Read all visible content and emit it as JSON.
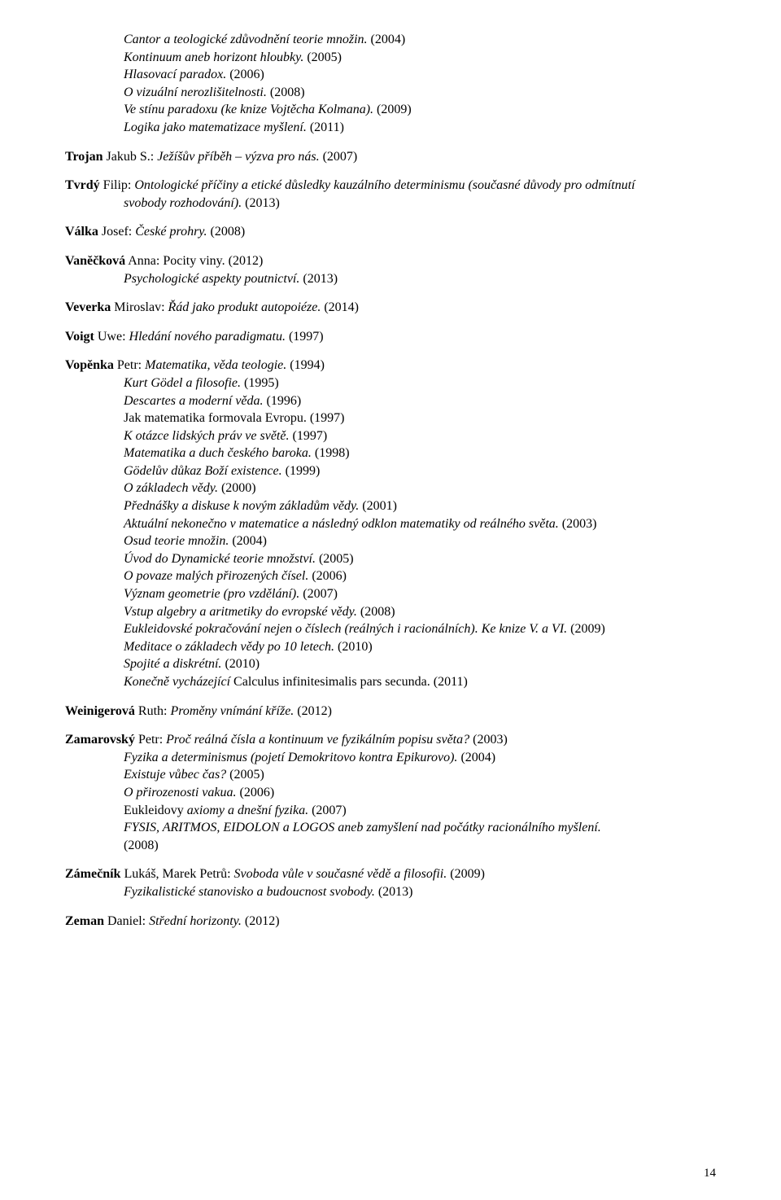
{
  "page_number": "14",
  "top_block": [
    {
      "t": "Cantor a teologické zdůvodnění teorie množin.",
      "y": " (2004)"
    },
    {
      "t": "Kontinuum aneb horizont hloubky.",
      "y": " (2005)"
    },
    {
      "t": "Hlasovací paradox.",
      "y": " (2006)"
    },
    {
      "t": "O vizuální nerozlišitelnosti.",
      "y": " (2008)"
    },
    {
      "t": "Ve stínu paradoxu (ke knize Vojtěcha Kolmana).",
      "y": " (2009)"
    },
    {
      "t": "Logika jako matematizace myšlení.",
      "y": " (2011)"
    }
  ],
  "trojan": {
    "a": "Trojan",
    "n": " Jakub S.: ",
    "t": "Ježíšův příběh – výzva pro nás.",
    "y": " (2007)"
  },
  "tvrdy": {
    "a": "Tvrdý",
    "n": " Filip: ",
    "t1": "Ontologické příčiny a etické důsledky kauzálního determinismu (současné důvody pro odmítnutí",
    "t2": "svobody rozhodování).",
    "y": " (2013)"
  },
  "valka": {
    "a": "Válka",
    "n": " Josef: ",
    "t": "České prohry.",
    "y": " (2008)"
  },
  "vaneckova": {
    "a": "Vaněčková",
    "n": " Anna: Pocity viny. (2012)",
    "sub": [
      {
        "t": "Psychologické aspekty poutnictví.",
        "y": " (2013)"
      }
    ]
  },
  "veverka": {
    "a": "Veverka",
    "n": " Miroslav: ",
    "t": "Řád jako produkt autopoiéze.",
    "y": " (2014)"
  },
  "voigt": {
    "a": "Voigt",
    "n": " Uwe: ",
    "t": "Hledání nového paradigmatu.",
    "y": " (1997)"
  },
  "vopenka": {
    "a": "Vopěnka",
    "n": " Petr: ",
    "t": "Matematika, věda teologie.",
    "y": " (1994)",
    "sub": [
      {
        "t": "Kurt Gödel a filosofie.",
        "y": " (1995)"
      },
      {
        "t": "Descartes a moderní věda.",
        "y": " (1996)"
      },
      {
        "plain": "Jak matematika formovala Evropu. (1997)"
      },
      {
        "t": "K otázce lidských práv ve světě.",
        "y": " (1997)"
      },
      {
        "t": "Matematika a duch českého baroka.",
        "y": " (1998)"
      },
      {
        "t": "Gödelův důkaz Boží existence.",
        "y": " (1999)"
      },
      {
        "t": "O základech vědy.",
        "y": " (2000)"
      },
      {
        "t": "Přednášky a diskuse k novým základům vědy.",
        "y": " (2001)"
      },
      {
        "t": "Aktuální nekonečno v matematice a následný odklon matematiky od reálného světa.",
        "y": " (2003)"
      },
      {
        "t": "Osud teorie množin.",
        "y": " (2004)"
      },
      {
        "t": "Úvod do Dynamické teorie množství.",
        "y": " (2005)"
      },
      {
        "t": "O povaze malých přirozených čísel.",
        "y": " (2006)"
      },
      {
        "t": "Význam geometrie (pro vzdělání).",
        "y": " (2007)"
      },
      {
        "t": "Vstup algebry a aritmetiky do evropské vědy.",
        "y": " (2008)"
      },
      {
        "t": "Eukleidovské pokračování nejen o číslech (reálných i racionálních). Ke knize V. a VI.",
        "y": " (2009)"
      },
      {
        "t": "Meditace o základech vědy po 10 letech.",
        "y": " (2010)"
      },
      {
        "t": "Spojité a diskrétní.",
        "y": " (2010)"
      },
      {
        "lead_i": "Konečně vycházející ",
        "plain_after": "Calculus infinitesimalis pars secunda. (2011)"
      }
    ]
  },
  "weinigerova": {
    "a": "Weinigerová",
    "n": " Ruth: ",
    "t": "Proměny vnímání kříže.",
    "y": " (2012)"
  },
  "zamarovsky": {
    "a": "Zamarovský",
    "n": " Petr: ",
    "t": "Proč reálná čísla a kontinuum ve fyzikálním popisu světa?",
    "y": " (2003)",
    "sub": [
      {
        "t": "Fyzika a determinismus (pojetí Demokritovo kontra Epikurovo).",
        "y": " (2004)"
      },
      {
        "t": "Existuje vůbec čas?",
        "y": " (2005)"
      },
      {
        "t": "O přirozenosti vakua.",
        "y": " (2006)"
      },
      {
        "lead_plain": "Eukleidovy ",
        "trail_i": "axiomy a dnešní fyzika.",
        "y": " (2007)"
      },
      {
        "t": "FYSIS, ARITMOS, EIDOLON a LOGOS aneb zamyšlení nad počátky racionálního myšlení.",
        "y": ""
      },
      {
        "plain": "(2008)"
      }
    ]
  },
  "zamecnik": {
    "a": "Zámečník",
    "n": " Lukáš, Marek Petrů: ",
    "t": "Svoboda vůle v současné vědě a filosofii.",
    "y": " (2009)",
    "sub": [
      {
        "t": "Fyzikalistické stanovisko a budoucnost svobody.",
        "y": " (2013)"
      }
    ]
  },
  "zeman": {
    "a": "Zeman",
    "n": " Daniel: ",
    "t": "Střední horizonty.",
    "y": " (2012)"
  }
}
